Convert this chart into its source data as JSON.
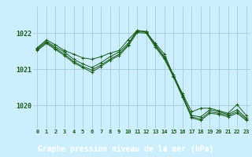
{
  "bg_color": "#cceeff",
  "plot_bg_color": "#cceeff",
  "bottom_bar_color": "#336633",
  "grid_color": "#99cccc",
  "line_color": "#1a5c1a",
  "xlabel": "Graphe pression niveau de la mer (hPa)",
  "xlabel_fontsize": 7.0,
  "yticks": [
    1020,
    1021,
    1022
  ],
  "xlim": [
    -0.5,
    23.5
  ],
  "ylim": [
    1019.35,
    1022.75
  ],
  "line1": [
    1021.6,
    1021.82,
    1021.68,
    1021.52,
    1021.42,
    1021.32,
    1021.28,
    1021.35,
    1021.45,
    1021.52,
    1021.82,
    1022.08,
    1022.02,
    1021.72,
    1021.42,
    1020.82,
    1020.32,
    1019.82,
    1019.92,
    1019.92,
    1019.85,
    1019.78,
    1020.02,
    1019.72
  ],
  "line2": [
    1021.58,
    1021.78,
    1021.62,
    1021.48,
    1021.28,
    1021.15,
    1021.05,
    1021.18,
    1021.35,
    1021.48,
    1021.72,
    1022.08,
    1022.05,
    1021.68,
    1021.35,
    1020.85,
    1020.28,
    1019.72,
    1019.68,
    1019.88,
    1019.82,
    1019.75,
    1019.88,
    1019.65
  ],
  "line3": [
    1021.55,
    1021.75,
    1021.58,
    1021.42,
    1021.22,
    1021.08,
    1020.98,
    1021.12,
    1021.28,
    1021.42,
    1021.68,
    1022.05,
    1022.05,
    1021.65,
    1021.32,
    1020.82,
    1020.25,
    1019.68,
    1019.62,
    1019.82,
    1019.78,
    1019.72,
    1019.82,
    1019.62
  ],
  "line4": [
    1021.52,
    1021.72,
    1021.55,
    1021.38,
    1021.18,
    1021.05,
    1020.92,
    1021.08,
    1021.25,
    1021.38,
    1021.65,
    1022.02,
    1022.0,
    1021.62,
    1021.28,
    1020.78,
    1020.22,
    1019.65,
    1019.58,
    1019.78,
    1019.75,
    1019.68,
    1019.78,
    1019.58
  ],
  "xtick_fontsize": 5.0,
  "ytick_fontsize": 6.0,
  "marker_size": 2.5,
  "line_width": 0.7
}
